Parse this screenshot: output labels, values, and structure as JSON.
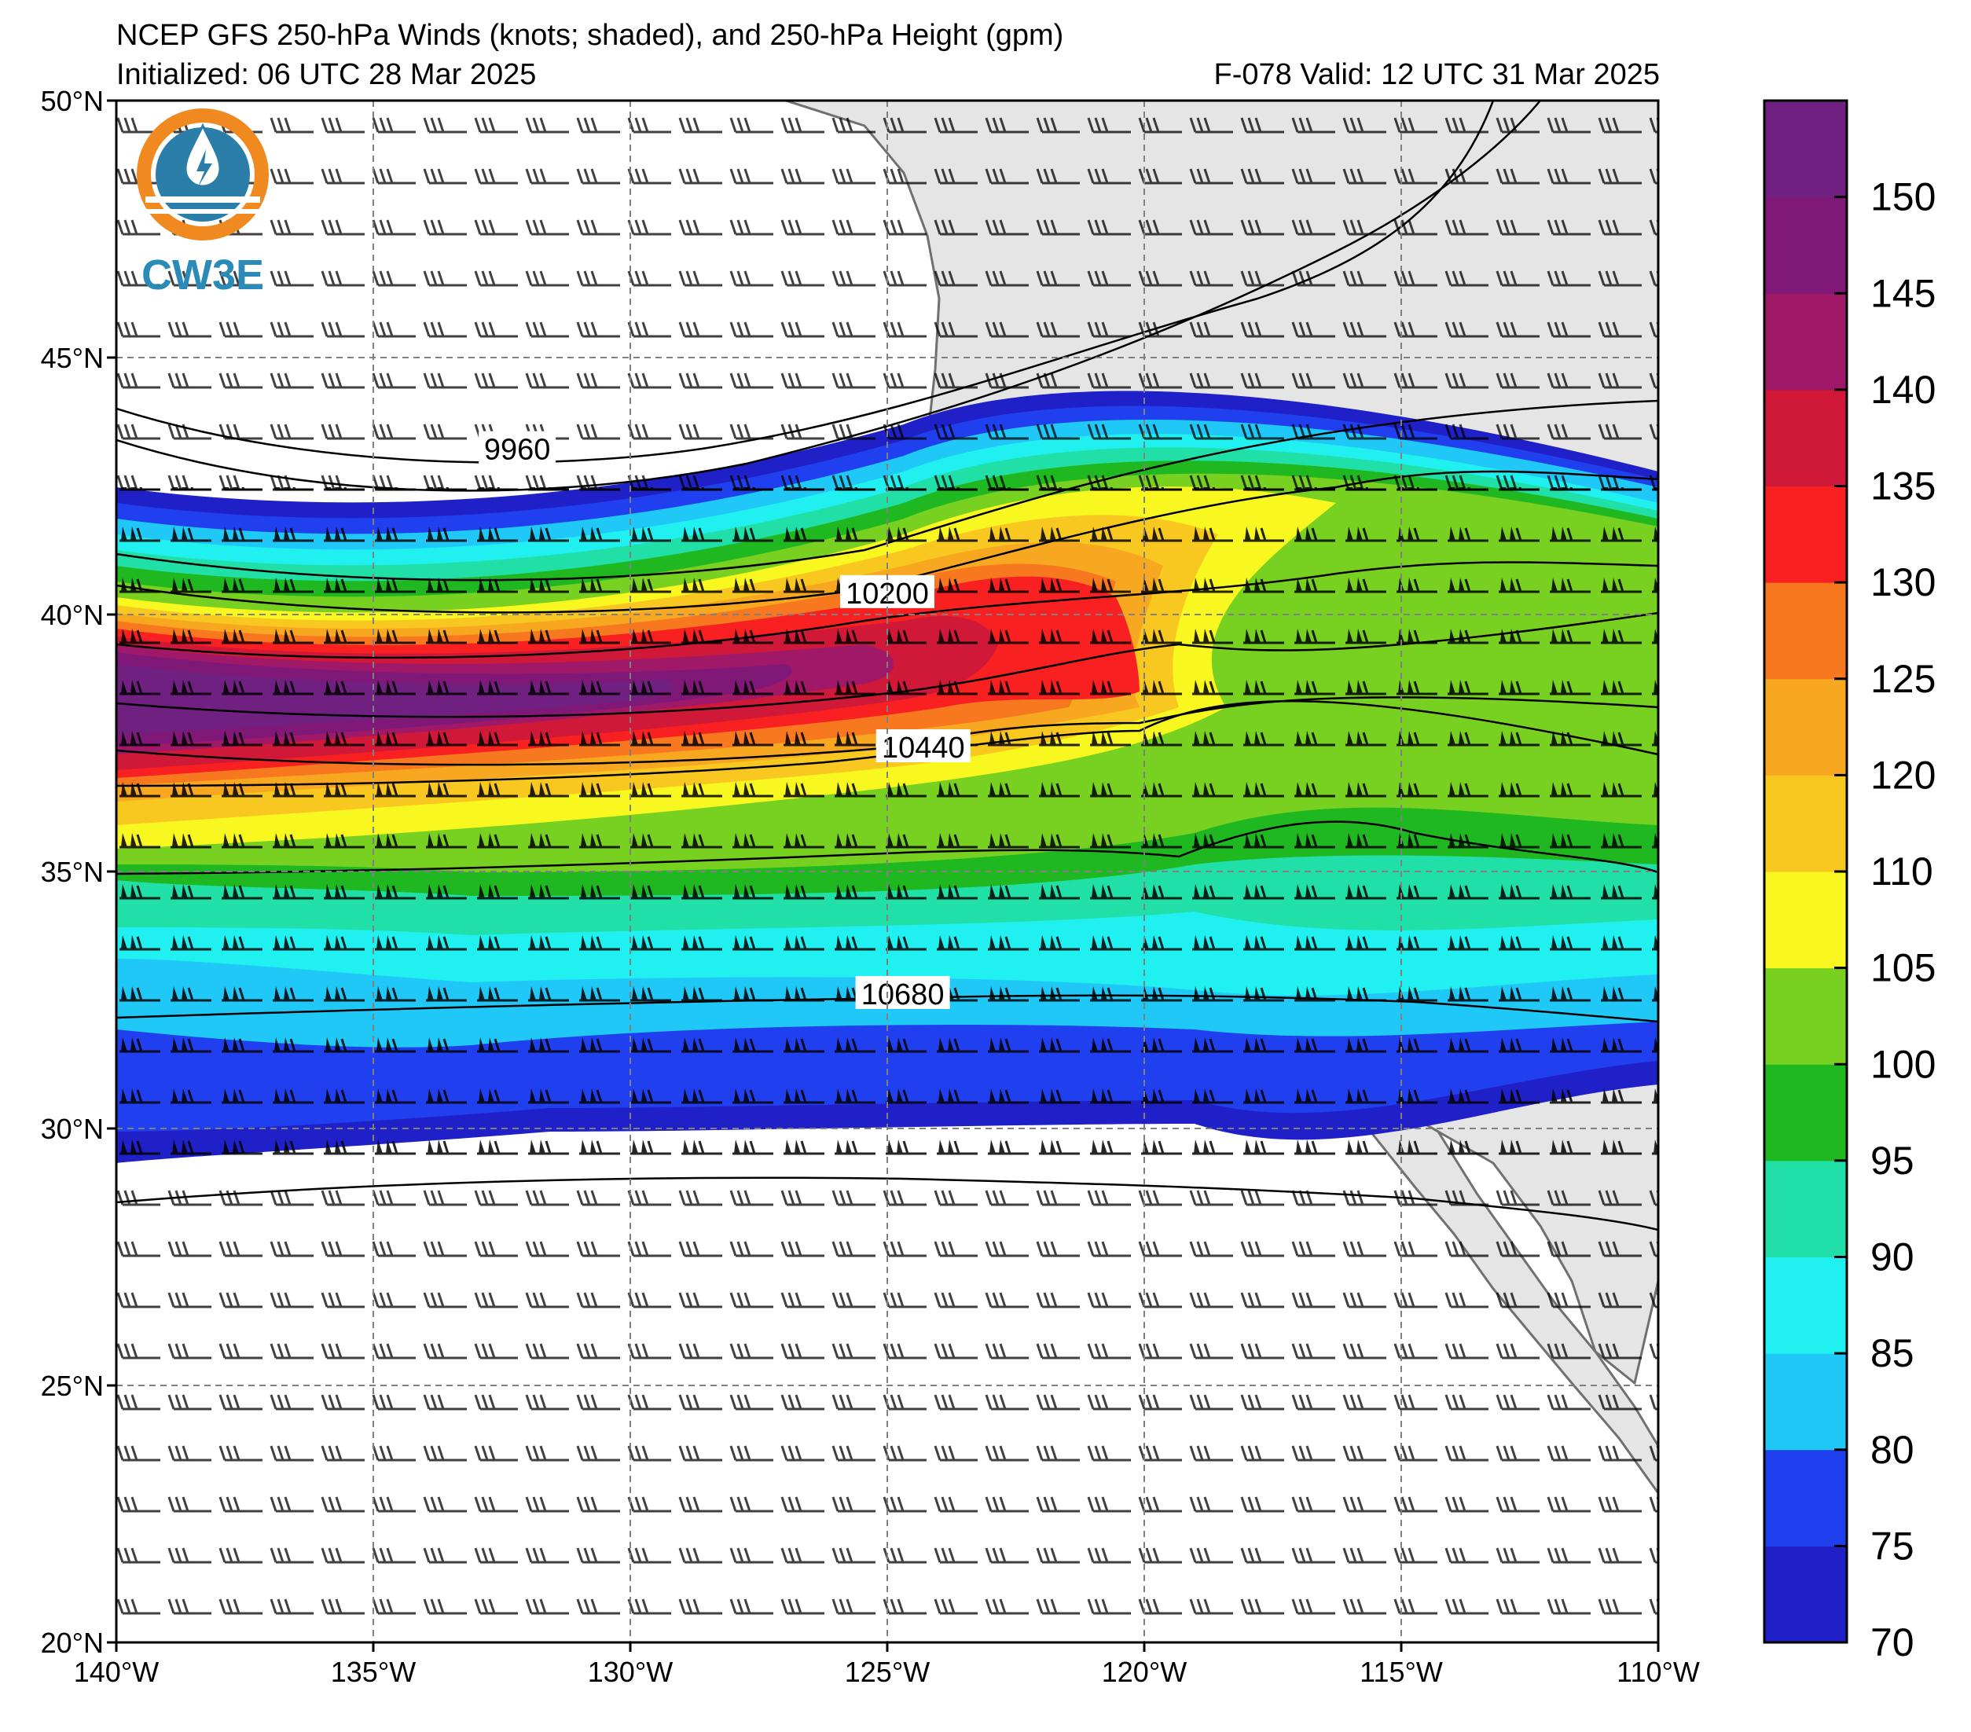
{
  "title": {
    "line1": "NCEP GFS 250-hPa Winds (knots; shaded), and 250-hPa Height (gpm)",
    "init": "Initialized: 06 UTC 28 Mar 2025",
    "valid": "F-078  Valid: 12 UTC 31 Mar 2025"
  },
  "logo": {
    "text": "CW3E",
    "icon": "water-drop-sun-logo-icon"
  },
  "axes": {
    "lon_range": [
      -140,
      -110
    ],
    "lat_range": [
      20,
      50
    ],
    "lon_ticks": [
      {
        "value": -140,
        "label": "140°W"
      },
      {
        "value": -135,
        "label": "135°W"
      },
      {
        "value": -130,
        "label": "130°W"
      },
      {
        "value": -125,
        "label": "125°W"
      },
      {
        "value": -120,
        "label": "120°W"
      },
      {
        "value": -115,
        "label": "115°W"
      },
      {
        "value": -110,
        "label": "110°W"
      }
    ],
    "lat_ticks": [
      {
        "value": 50,
        "label": "50°N"
      },
      {
        "value": 45,
        "label": "45°N"
      },
      {
        "value": 40,
        "label": "40°N"
      },
      {
        "value": 35,
        "label": "35°N"
      },
      {
        "value": 30,
        "label": "30°N"
      },
      {
        "value": 25,
        "label": "25°N"
      },
      {
        "value": 20,
        "label": "20°N"
      }
    ],
    "grid": "dashed gray at 5° intervals"
  },
  "colorbar": {
    "ticks": [
      "70",
      "75",
      "80",
      "85",
      "90",
      "95",
      "100",
      "105",
      "110",
      "120",
      "125",
      "130",
      "135",
      "140",
      "145",
      "150"
    ],
    "bins": [
      {
        "from": 70,
        "to": 75,
        "color": "#2020c8"
      },
      {
        "from": 75,
        "to": 80,
        "color": "#2040f0"
      },
      {
        "from": 80,
        "to": 85,
        "color": "#20c8f8"
      },
      {
        "from": 85,
        "to": 90,
        "color": "#20f0f0"
      },
      {
        "from": 90,
        "to": 95,
        "color": "#20e0a8"
      },
      {
        "from": 95,
        "to": 100,
        "color": "#20b820"
      },
      {
        "from": 100,
        "to": 105,
        "color": "#78d020"
      },
      {
        "from": 105,
        "to": 110,
        "color": "#f8f820"
      },
      {
        "from": 110,
        "to": 120,
        "color": "#f8c820"
      },
      {
        "from": 120,
        "to": 125,
        "color": "#f8a820"
      },
      {
        "from": 125,
        "to": 130,
        "color": "#f87820"
      },
      {
        "from": 130,
        "to": 135,
        "color": "#f82020"
      },
      {
        "from": 135,
        "to": 140,
        "color": "#d01838"
      },
      {
        "from": 140,
        "to": 145,
        "color": "#a01868"
      },
      {
        "from": 145,
        "to": 150,
        "color": "#801878"
      },
      {
        "from": 150,
        "to": 155,
        "color": "#702080"
      }
    ]
  },
  "contours": {
    "labeled": [
      {
        "value": "9960",
        "lon": -132.2,
        "lat": 43.2
      },
      {
        "value": "10200",
        "lon": -125.0,
        "lat": 40.4
      },
      {
        "value": "10440",
        "lon": -124.3,
        "lat": 37.4
      },
      {
        "value": "10680",
        "lon": -124.7,
        "lat": 32.6
      }
    ]
  },
  "wind_units": "knots"
}
